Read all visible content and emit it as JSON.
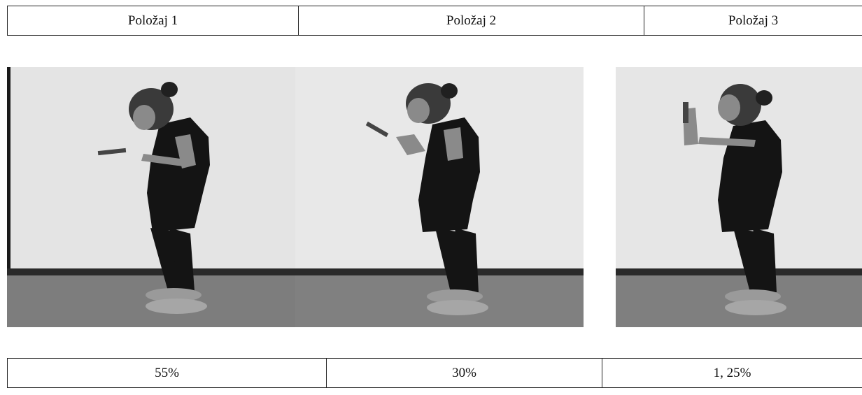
{
  "positions": {
    "labels": [
      "Položaj 1",
      "Položaj 2",
      "Položaj 3"
    ]
  },
  "percentages": {
    "values": [
      "55%",
      "30%",
      "1, 25%"
    ]
  },
  "photo": {
    "subject": "woman standing holding a phone",
    "colors": {
      "wall": "#e4e4e4",
      "floor": "#7d7d7d",
      "baseboard": "#2a2a2a",
      "clothing": "#141414",
      "skin": "#8a8a8a",
      "shoes": "#9a9a9a"
    }
  }
}
